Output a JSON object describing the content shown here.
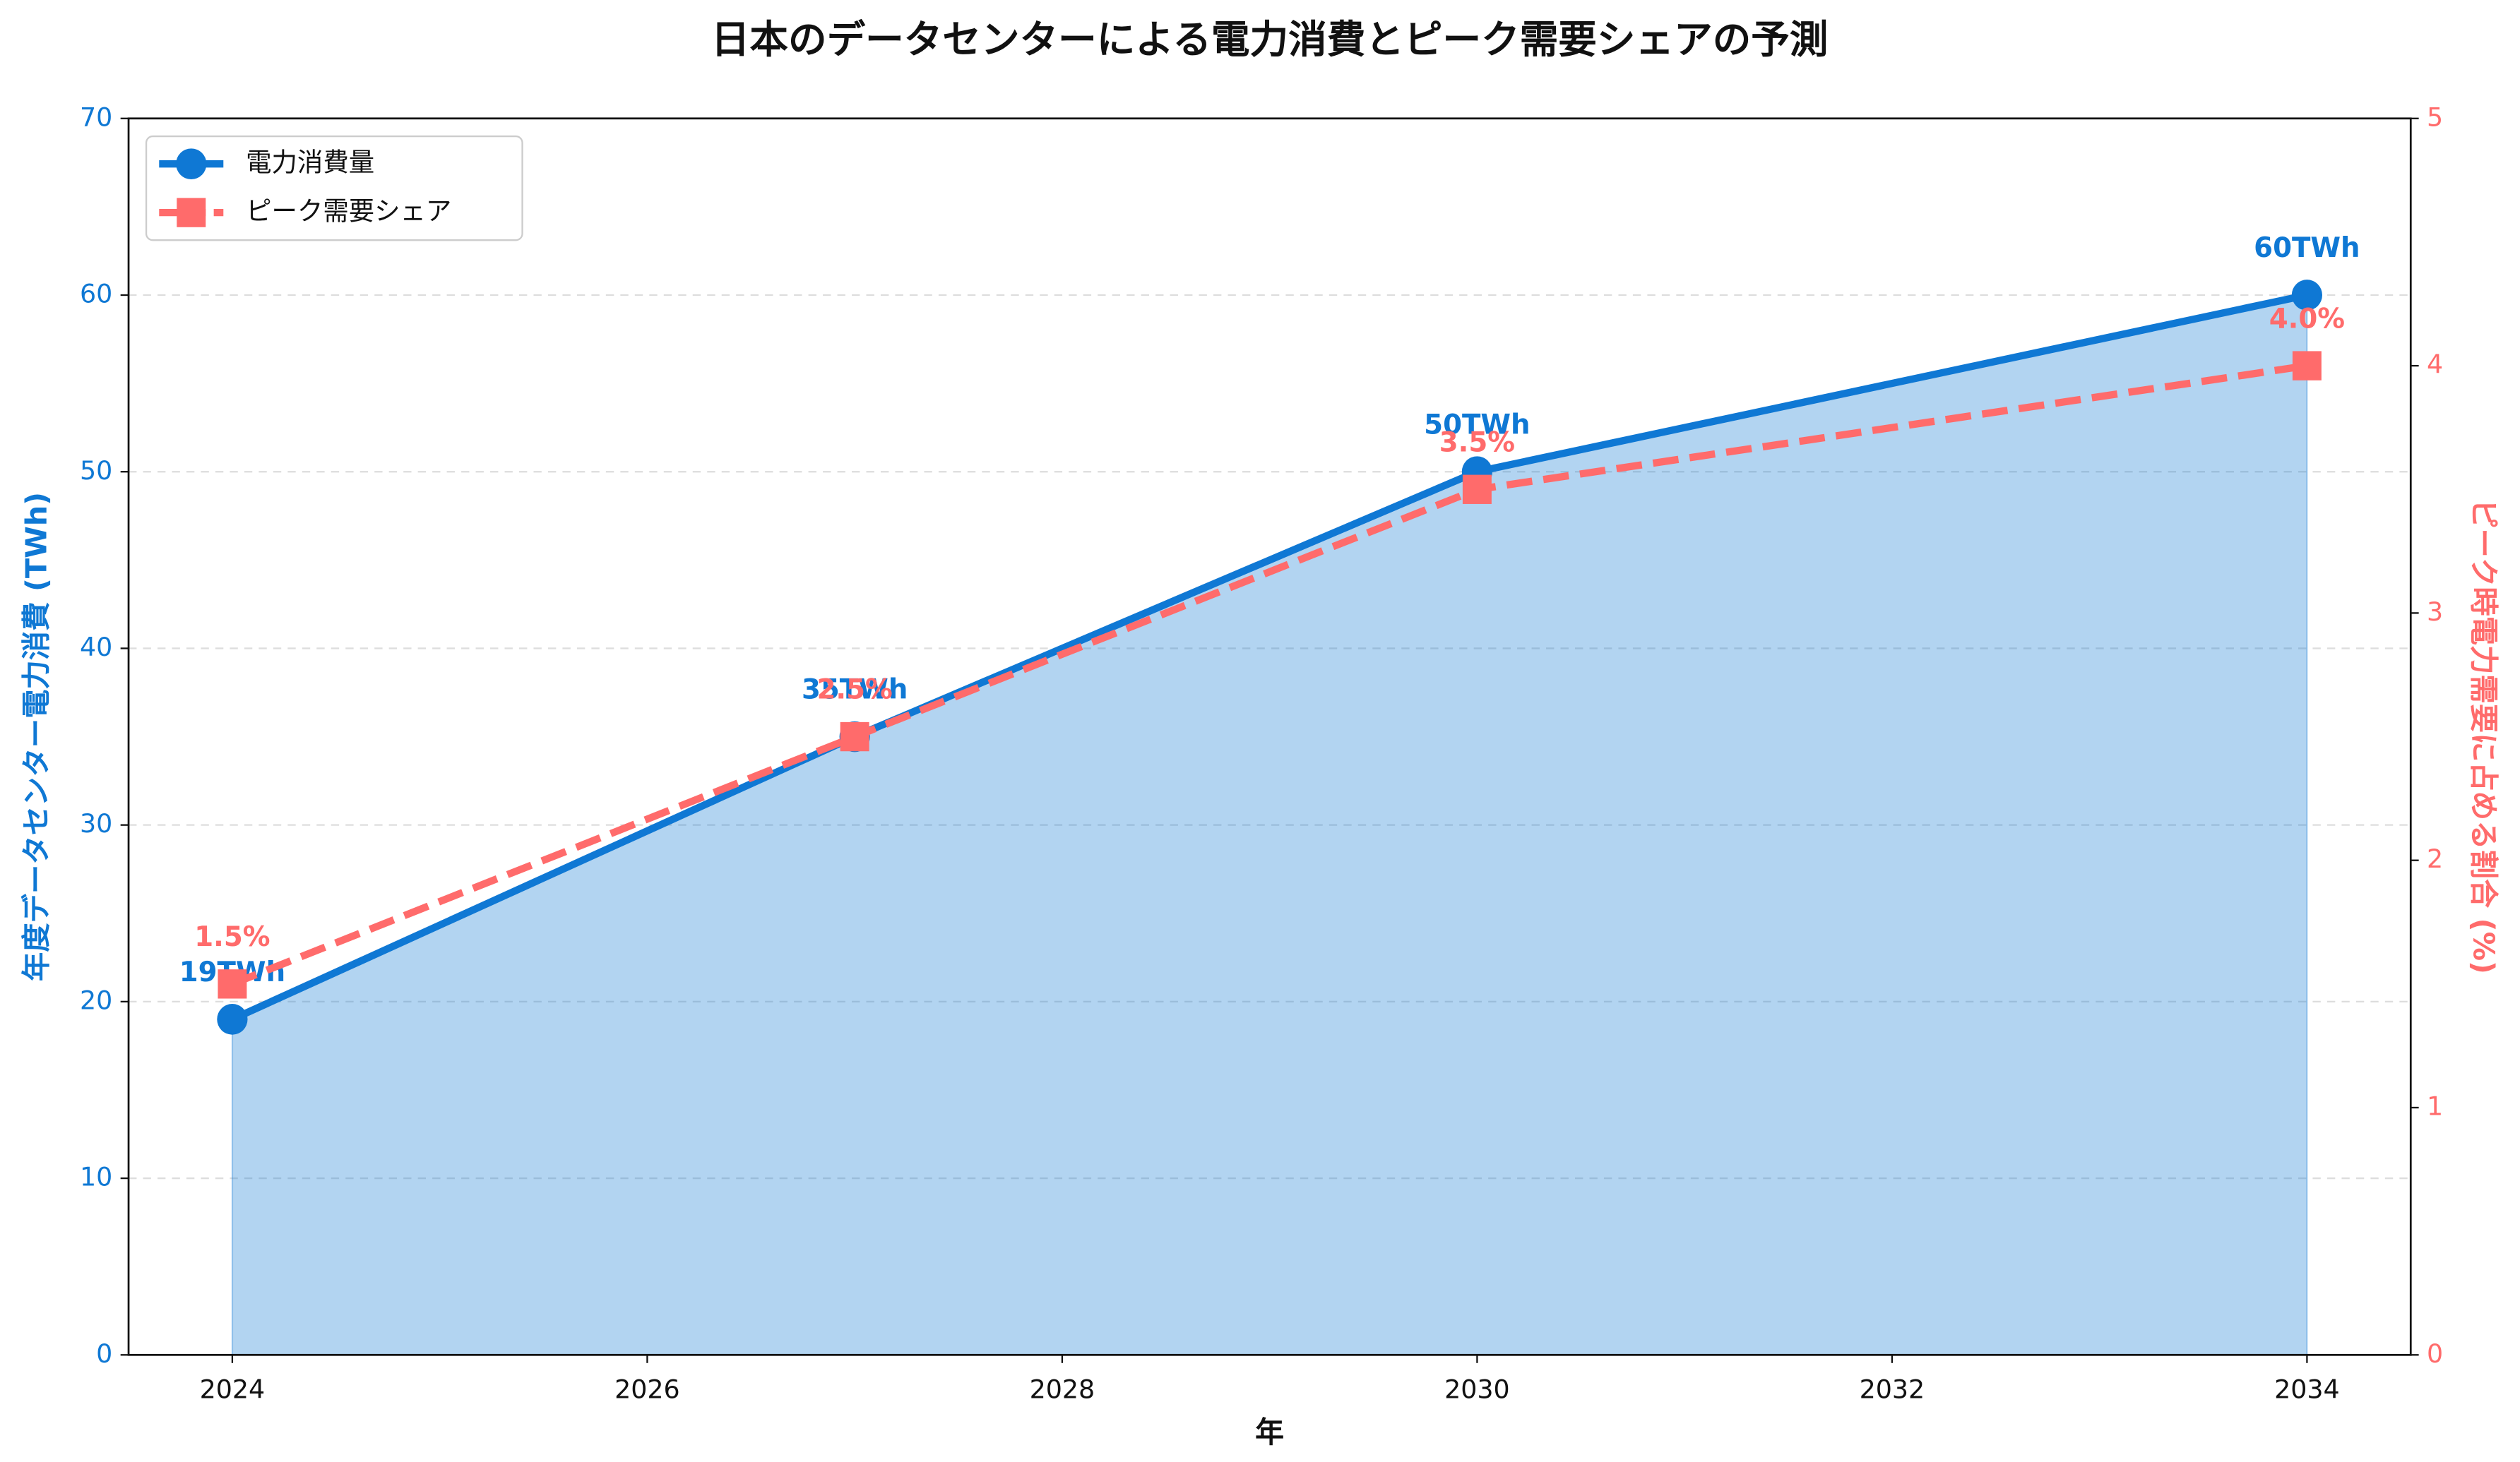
{
  "chart_data": {
    "type": "line",
    "title": "日本のデータセンターによる電力消費とピーク需要シェアの予測",
    "xlabel": "年",
    "ylabel": "年度データセンター電力消費 (TWh)",
    "y2label": "ピーク時電力需要に占める割合 (%)",
    "x": [
      2024,
      2027,
      2030,
      2034
    ],
    "series": [
      {
        "name": "電力消費量",
        "color": "#0f78d4",
        "values": [
          19,
          35,
          50,
          60
        ],
        "value_labels": [
          "19TWh",
          "35TWh",
          "50TWh",
          "60TWh"
        ],
        "marker": "circle",
        "fill": true
      },
      {
        "name": "ピーク需要シェア",
        "color": "#ff6b6b",
        "values": [
          1.5,
          2.5,
          3.5,
          4.0
        ],
        "value_labels": [
          "1.5%",
          "2.5%",
          "3.5%",
          "4.0%"
        ],
        "marker": "square",
        "dash": "dashed",
        "axis": "y2"
      }
    ],
    "xlim": [
      2023.5,
      2034.5
    ],
    "xticks": [
      2024,
      2026,
      2028,
      2030,
      2032,
      2034
    ],
    "ylim": [
      0,
      70
    ],
    "yticks": [
      0,
      10,
      20,
      30,
      40,
      50,
      60,
      70
    ],
    "y2lim": [
      0,
      5
    ],
    "y2ticks": [
      0,
      1,
      2,
      3,
      4,
      5
    ],
    "grid": true,
    "legend": "upper left"
  }
}
